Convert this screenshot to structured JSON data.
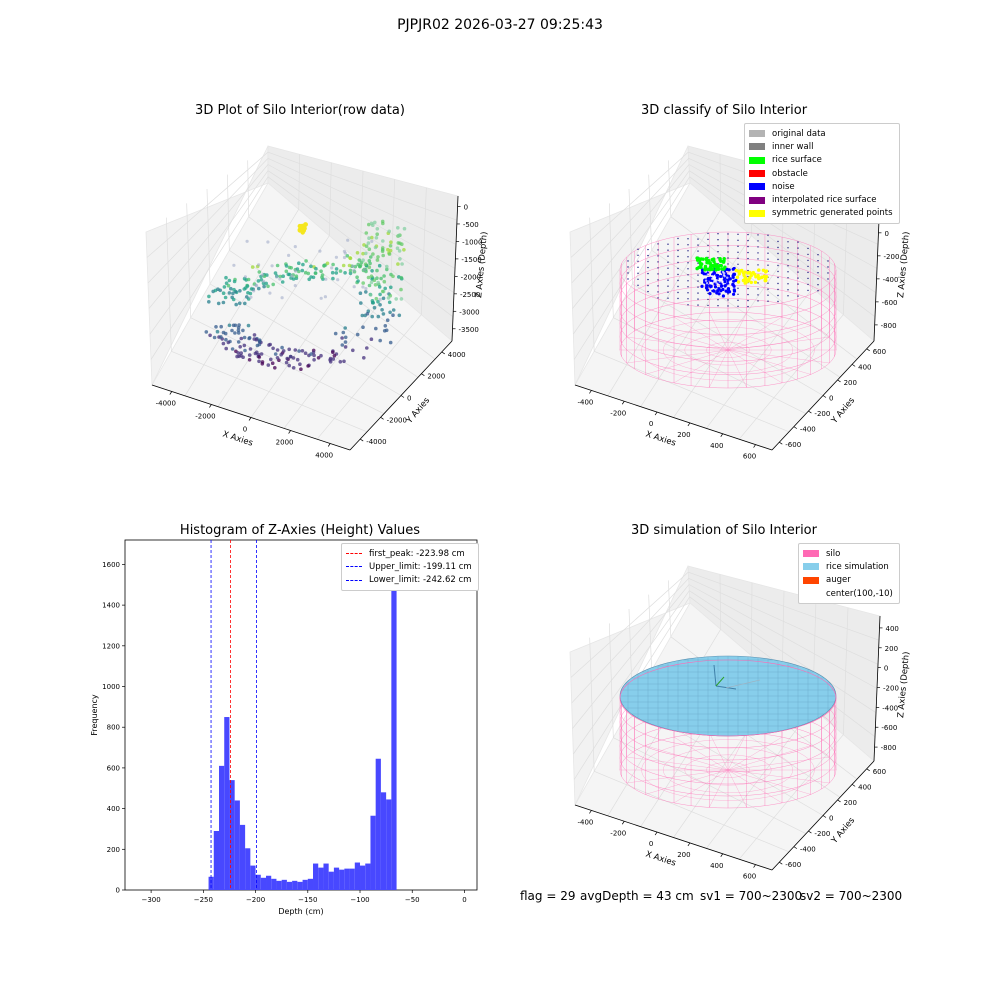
{
  "suptitle": "PJPJR02 2026-03-27 09:25:43",
  "colors": {
    "silo": "#ff69b4",
    "rice": "#87ceeb",
    "auger": "#ff4500",
    "noise": "#0000ff",
    "rice_surface": "#00ff00",
    "symmetric": "#ffff00",
    "hist_bar": "#4848ff",
    "peak_line": "#ff0000",
    "limit_line": "#0000ff",
    "pane": "#f2f2f2"
  },
  "chart_data": [
    {
      "type": "scatter",
      "projection": "3d",
      "title": "3D Plot of Silo Interior(row data)",
      "xlabel": "X Axies",
      "ylabel": "Y Axies",
      "zlabel": "Z Axies (Depth)",
      "x_ticks": [
        "-4000",
        "-2000",
        "0",
        "2000",
        "4000"
      ],
      "y_ticks": [
        "4000",
        "2000",
        "0",
        "-2000",
        "-4000"
      ],
      "z_ticks": [
        "0",
        "-500",
        "-1000",
        "-1500",
        "-2000",
        "-2500",
        "-3000",
        "-3500"
      ],
      "xlim": [
        -4000,
        4000
      ],
      "ylim": [
        -4000,
        4000
      ],
      "zlim": [
        -3700,
        0
      ],
      "colormap": "viridis",
      "note_points": "ring of points at z≈-3000 to -3600 forming bowl, wall points up to z≈-500, small yellow cluster near top"
    },
    {
      "type": "scatter",
      "projection": "3d",
      "title": "3D classify of Silo Interior",
      "xlabel": "X Axies",
      "ylabel": "Y Axies",
      "zlabel": "Z Axies (Depth)",
      "x_ticks": [
        "-400",
        "-200",
        "0",
        "200",
        "400",
        "600"
      ],
      "y_ticks": [
        "600",
        "400",
        "200",
        "0",
        "-200",
        "-400",
        "-600"
      ],
      "z_ticks": [
        "200",
        "0",
        "-200",
        "-400",
        "-600",
        "-800"
      ],
      "xlim": [
        -500,
        700
      ],
      "ylim": [
        -650,
        650
      ],
      "zlim": [
        -900,
        300
      ],
      "legend": [
        {
          "label": "original data",
          "color": "#b3b3b3"
        },
        {
          "label": "inner wall",
          "color": "#808080"
        },
        {
          "label": "rice surface",
          "color": "#00ff00"
        },
        {
          "label": "obstacle",
          "color": "#ff0000"
        },
        {
          "label": "noise",
          "color": "#0000ff"
        },
        {
          "label": "interpolated rice surface",
          "color": "#800080"
        },
        {
          "label": "symmetric generated points",
          "color": "#ffff00"
        }
      ]
    },
    {
      "type": "bar",
      "title": "Histogram of Z-Axies (Height) Values",
      "xlabel": "Depth (cm)",
      "ylabel": "Frequency",
      "xlim": [
        -325,
        12
      ],
      "ylim": [
        0,
        1720
      ],
      "x_ticks": [
        -300,
        -250,
        -200,
        -150,
        -100,
        -50,
        0
      ],
      "y_ticks": [
        0,
        200,
        400,
        600,
        800,
        1000,
        1200,
        1400,
        1600
      ],
      "bin_width": 5,
      "bin_start": -245,
      "values": [
        65,
        290,
        610,
        850,
        540,
        440,
        320,
        205,
        120,
        75,
        60,
        70,
        55,
        45,
        50,
        40,
        45,
        40,
        50,
        55,
        130,
        110,
        130,
        90,
        110,
        100,
        105,
        105,
        135,
        120,
        130,
        365,
        645,
        480,
        445,
        1620
      ],
      "vlines": [
        {
          "label": "first_peak: -223.98 cm",
          "x": -223.98,
          "color": "#ff0000"
        },
        {
          "label": "Upper_limit: -199.11 cm",
          "x": -199.11,
          "color": "#0000ff"
        },
        {
          "label": "Lower_limit: -242.62 cm",
          "x": -242.62,
          "color": "#0000ff"
        }
      ],
      "legend_position": "top-right"
    },
    {
      "type": "area",
      "projection": "3d",
      "title": "3D simulation of Silo Interior",
      "xlabel": "X Axies",
      "ylabel": "Y Axies",
      "zlabel": "Z Axies (Depth)",
      "x_ticks": [
        "-400",
        "-200",
        "0",
        "200",
        "400",
        "600"
      ],
      "y_ticks": [
        "600",
        "400",
        "200",
        "0",
        "-200",
        "-400",
        "-600"
      ],
      "z_ticks": [
        "400",
        "200",
        "0",
        "-200",
        "-400",
        "-600",
        "-800"
      ],
      "xlim": [
        -500,
        700
      ],
      "ylim": [
        -650,
        650
      ],
      "zlim": [
        -900,
        450
      ],
      "legend": [
        {
          "label": "silo",
          "color": "#ff69b4"
        },
        {
          "label": "rice simulation",
          "color": "#87ceeb"
        },
        {
          "label": "auger",
          "color": "#ff4500"
        },
        {
          "label": "center(100,-10)",
          "color": ""
        }
      ]
    }
  ],
  "footer": {
    "flag": "flag = 29",
    "avg_depth": "avgDepth = 43 cm",
    "sv1": "sv1 = 700~2300",
    "sv2": "sv2 = 700~2300"
  }
}
